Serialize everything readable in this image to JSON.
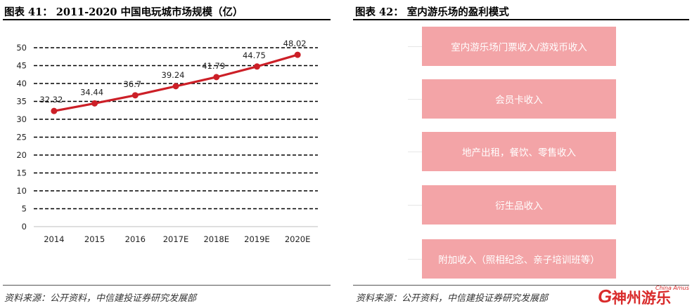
{
  "left_panel": {
    "title": "图表 41： 2011-2020 中国电玩城市场规模（亿）",
    "source": "资料来源：公开资料，中信建投证券研究发展部"
  },
  "right_panel": {
    "title": "图表 42： 室内游乐场的盈利模式",
    "source": "资料来源：公开资料，中信建投证券研究发展部",
    "items": [
      {
        "label": "室内游乐场门票收入/游戏币收入"
      },
      {
        "label": "会员卡收入"
      },
      {
        "label": "地产出租，餐饮、零售收入"
      },
      {
        "label": "衍生品收入"
      },
      {
        "label": "附加收入（照相纪念、亲子培训班等）"
      }
    ]
  },
  "watermark": {
    "logo_text": "神州游乐",
    "subtext": "China Amuse"
  },
  "colors": {
    "line": "#cc1f27",
    "box_fill": "#f3a4a7",
    "box_text": "#ffffff"
  },
  "chart_data": {
    "type": "line",
    "title": "",
    "xlabel": "",
    "ylabel": "",
    "categories": [
      "2014",
      "2015",
      "2016",
      "2017E",
      "2018E",
      "2019E",
      "2020E"
    ],
    "series": [
      {
        "values": [
          32.32,
          34.44,
          36.7,
          39.24,
          41.79,
          44.75,
          48.02
        ]
      }
    ],
    "data_labels": [
      "32.32",
      "34.44",
      "36.7",
      "39.24",
      "41.79",
      "44.75",
      "48.02"
    ],
    "ylim": [
      0,
      50
    ],
    "yticks": [
      0,
      5,
      10,
      15,
      20,
      25,
      30,
      35,
      40,
      45,
      50
    ],
    "grid": "horizontal dashed",
    "legend": "none"
  }
}
